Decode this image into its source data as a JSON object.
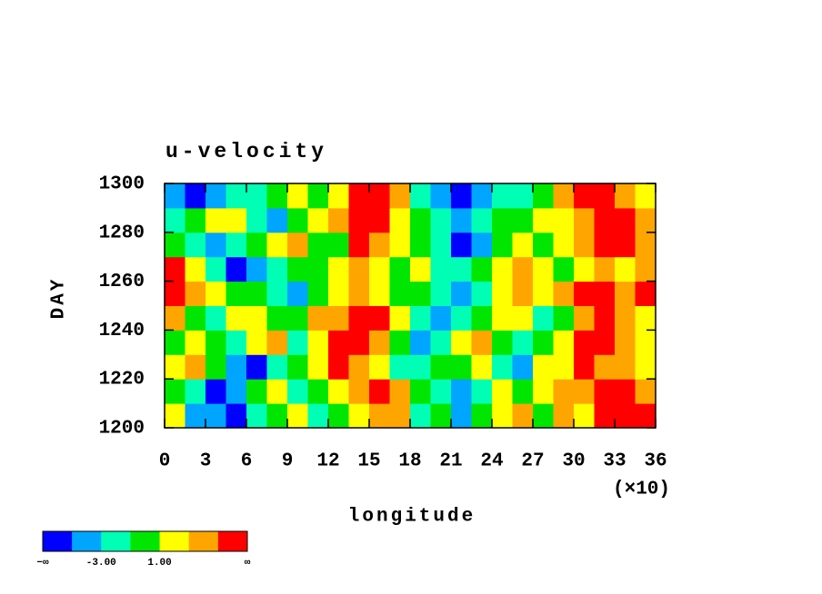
{
  "chart_data": {
    "type": "heatmap",
    "title": "u-velocity",
    "xlabel": "longitude",
    "ylabel": "DAY",
    "x_scale_label": "(×10)",
    "xlim": [
      0,
      36
    ],
    "xticks": [
      0,
      3,
      6,
      9,
      12,
      15,
      18,
      21,
      24,
      27,
      30,
      33,
      36
    ],
    "ylim": [
      1200,
      1300
    ],
    "yticks": [
      1200,
      1220,
      1240,
      1260,
      1280,
      1300
    ],
    "x": [
      0.75,
      2.25,
      3.75,
      5.25,
      6.75,
      8.25,
      9.75,
      11.25,
      12.75,
      14.25,
      15.75,
      17.25,
      18.75,
      20.25,
      21.75,
      23.25,
      24.75,
      26.25,
      27.75,
      29.25,
      30.75,
      32.25,
      33.75,
      35.25
    ],
    "y": [
      1205,
      1215,
      1225,
      1235,
      1245,
      1255,
      1265,
      1275,
      1285,
      1295
    ],
    "z": [
      [
        2,
        -4,
        -5,
        -6,
        -2,
        0,
        1,
        -3,
        -1,
        2,
        3,
        4,
        -2,
        0,
        -4,
        -1,
        2,
        3,
        0,
        4,
        2,
        5,
        6,
        6
      ],
      [
        0,
        -2,
        -6,
        -4,
        -1,
        1,
        -3,
        0,
        2,
        4,
        6,
        3,
        -1,
        -3,
        -5,
        -2,
        1,
        0,
        2,
        3,
        4,
        6,
        5,
        4
      ],
      [
        1,
        3,
        -1,
        -5,
        -6,
        -2,
        0,
        2,
        5,
        4,
        1,
        -2,
        -3,
        -1,
        0,
        2,
        -2,
        -4,
        1,
        2,
        6,
        3,
        4,
        2
      ],
      [
        -1,
        2,
        0,
        -3,
        1,
        3,
        -2,
        2,
        6,
        6,
        3,
        0,
        -4,
        -2,
        1,
        3,
        0,
        -3,
        -1,
        2,
        5,
        6,
        3,
        1
      ],
      [
        3,
        0,
        -2,
        1,
        2,
        0,
        -1,
        4,
        3,
        5,
        6,
        1,
        -2,
        -5,
        -3,
        0,
        2,
        1,
        -2,
        0,
        3,
        6,
        4,
        2
      ],
      [
        6,
        4,
        1,
        -1,
        0,
        -3,
        -4,
        0,
        2,
        3,
        1,
        -1,
        0,
        -3,
        -5,
        -2,
        1,
        3,
        2,
        4,
        6,
        5,
        3,
        6
      ],
      [
        5,
        1,
        -3,
        -6,
        -5,
        -2,
        0,
        -1,
        2,
        4,
        2,
        0,
        1,
        -2,
        -3,
        0,
        2,
        3,
        1,
        -1,
        2,
        4,
        1,
        3
      ],
      [
        0,
        -2,
        -4,
        -3,
        -1,
        1,
        3,
        0,
        -1,
        6,
        4,
        2,
        0,
        -3,
        -6,
        -4,
        -1,
        1,
        0,
        2,
        4,
        6,
        5,
        4
      ],
      [
        -3,
        -1,
        1,
        2,
        -2,
        -4,
        -1,
        2,
        3,
        6,
        5,
        1,
        -1,
        -2,
        -4,
        -3,
        -1,
        0,
        2,
        1,
        3,
        5,
        6,
        4
      ],
      [
        -4,
        -6,
        -5,
        -2,
        -3,
        -1,
        1,
        0,
        2,
        6,
        6,
        3,
        -2,
        -4,
        -6,
        -5,
        -3,
        -2,
        0,
        3,
        5,
        6,
        4,
        2
      ]
    ],
    "levels": [
      -5,
      -3,
      -1,
      1,
      3,
      5
    ],
    "colors": [
      "#0000ff",
      "#00a5ff",
      "#00ffb4",
      "#00e600",
      "#ffff00",
      "#ffa500",
      "#ff0000"
    ],
    "colorbar_low_label": "−∞",
    "colorbar_high_label": "∞",
    "colorbar_labels": [
      {
        "value": -3,
        "label": "-3.00"
      },
      {
        "value": 1,
        "label": "1.00"
      }
    ]
  }
}
